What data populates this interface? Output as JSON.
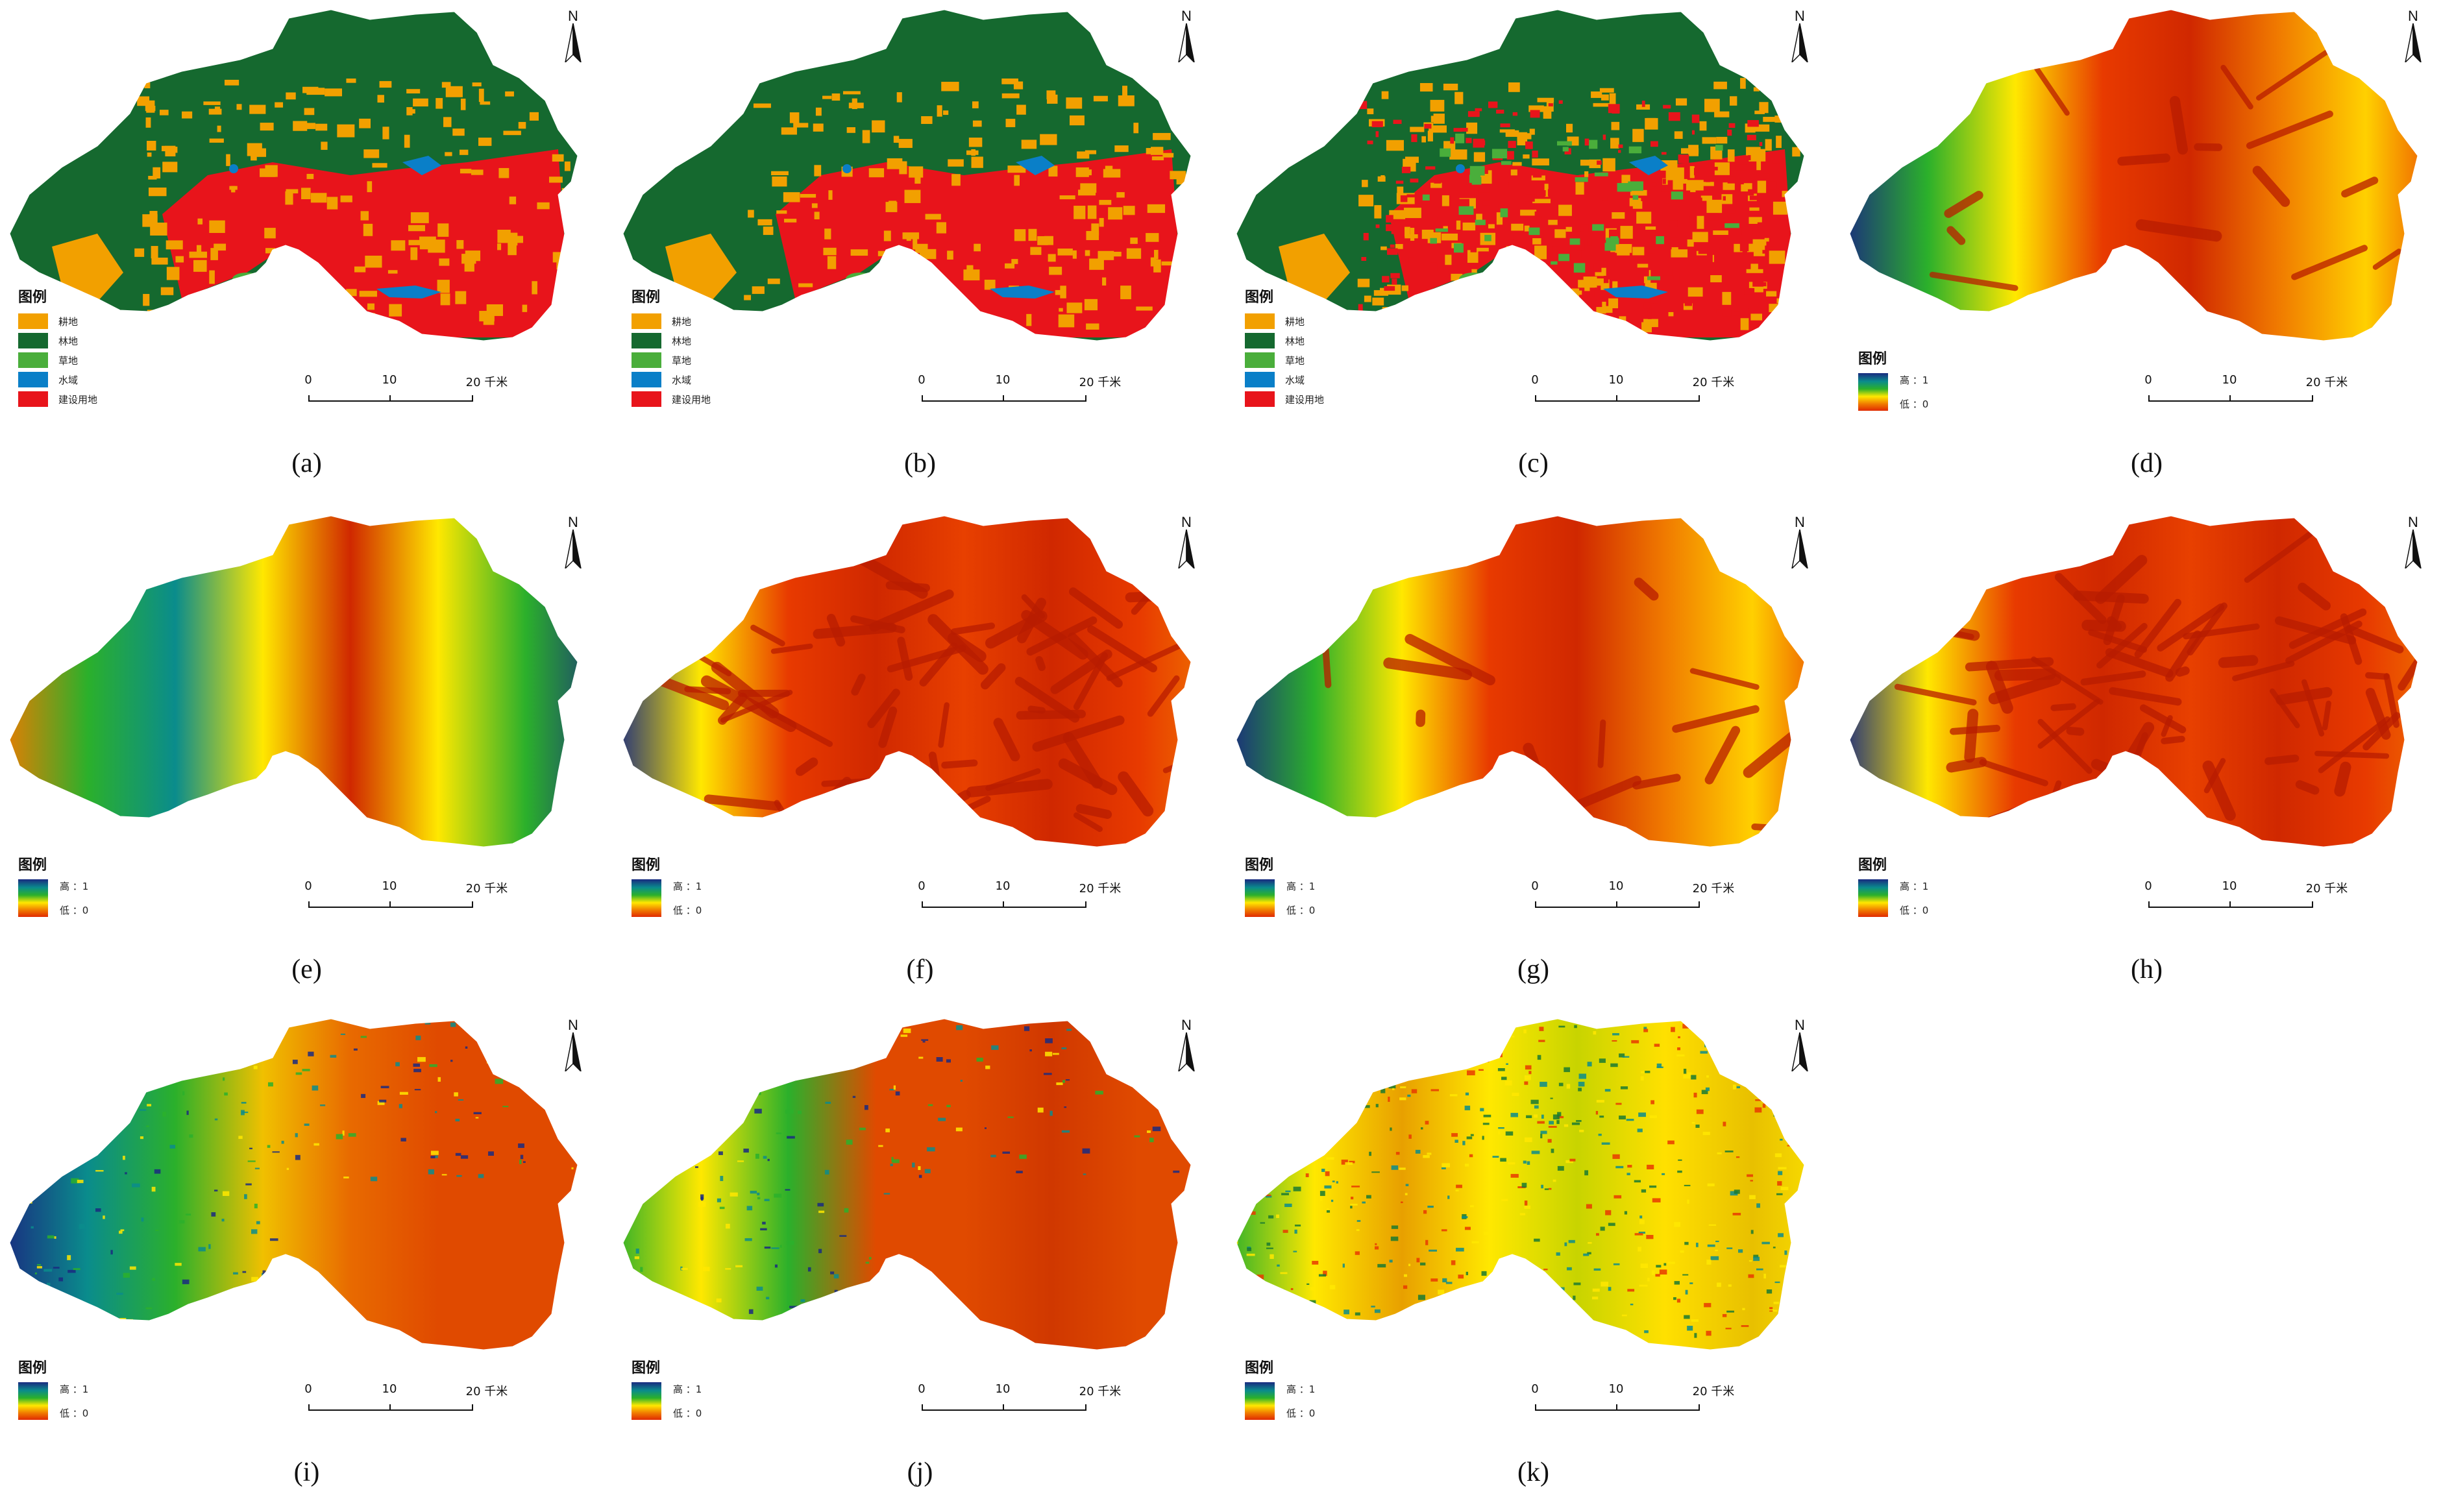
{
  "scale": {
    "zero": "0",
    "ten": "10",
    "twenty": "20",
    "unit": "千米"
  },
  "north_label": "N",
  "legend_title": "图例",
  "ramp": {
    "high": "高 ：1",
    "low": "低 ：0"
  },
  "landuse": [
    {
      "label": "耕地",
      "color": "#f2a000"
    },
    {
      "label": "林地",
      "color": "#15692f"
    },
    {
      "label": "草地",
      "color": "#4aae3b"
    },
    {
      "label": "水域",
      "color": "#0a7fc8"
    },
    {
      "label": "建设用地",
      "color": "#e8141b"
    }
  ],
  "panels": [
    {
      "caption": "(a)",
      "type": "landuse",
      "variant": 0
    },
    {
      "caption": "(b)",
      "type": "landuse",
      "variant": 1
    },
    {
      "caption": "(c)",
      "type": "landuse",
      "variant": 2
    },
    {
      "caption": "(d)",
      "type": "ramp",
      "style": "corridor"
    },
    {
      "caption": "(e)",
      "type": "ramp",
      "style": "bands"
    },
    {
      "caption": "(f)",
      "type": "ramp",
      "style": "dense"
    },
    {
      "caption": "(g)",
      "type": "ramp",
      "style": "corridor"
    },
    {
      "caption": "(h)",
      "type": "ramp",
      "style": "dense"
    },
    {
      "caption": "(i)",
      "type": "ramp",
      "style": "elevation"
    },
    {
      "caption": "(j)",
      "type": "ramp",
      "style": "slope"
    },
    {
      "caption": "(k)",
      "type": "ramp",
      "style": "aspect"
    }
  ]
}
